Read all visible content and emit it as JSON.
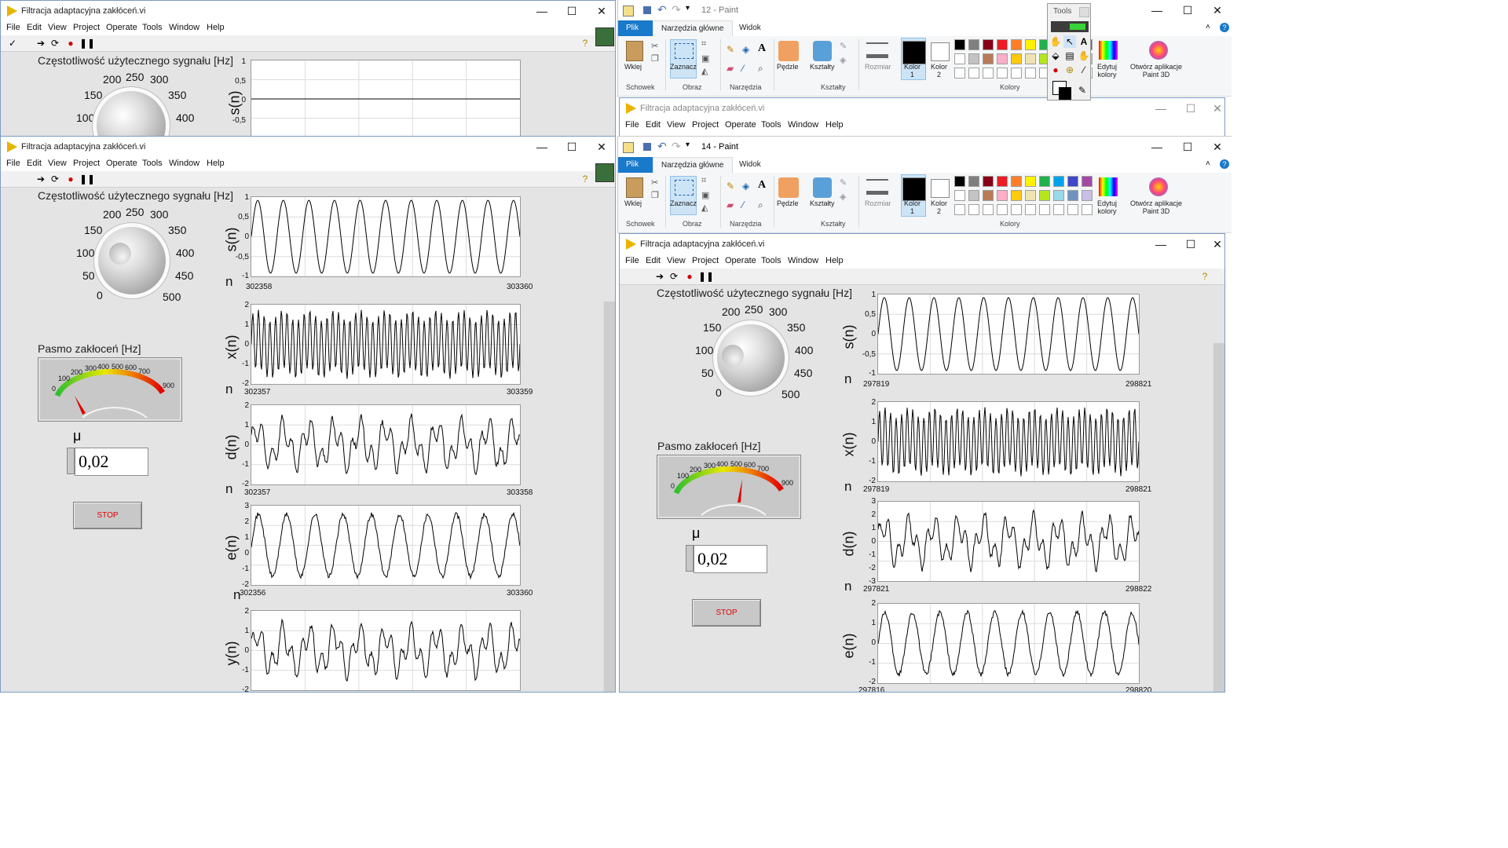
{
  "lv_menu": [
    "File",
    "Edit",
    "View",
    "Project",
    "Operate",
    "Tools",
    "Window",
    "Help"
  ],
  "lv_title": "Filtracja adaptacyjna zakłóceń.vi",
  "window_controls": {
    "minimize": "—",
    "maximize": "☐",
    "close": "✕"
  },
  "knob": {
    "label": "Częstotliwość użytecznego sygnału [Hz]",
    "scale": [
      "0",
      "50",
      "100",
      "150",
      "200",
      "250",
      "300",
      "350",
      "400",
      "450",
      "500"
    ]
  },
  "gauge": {
    "label": "Pasmo zakłoceń [Hz]",
    "scale": [
      "0",
      "100",
      "200",
      "300",
      "400",
      "500",
      "600",
      "700",
      "900"
    ]
  },
  "mu": {
    "symbol": "μ",
    "value": "0,02"
  },
  "stop_label": "STOP",
  "x_axis_letter": "n",
  "win1": {
    "graphs": [
      {
        "ylabel": "s(n)",
        "yticks": [
          "1",
          "0,5",
          "0",
          "-0,5"
        ]
      }
    ]
  },
  "win2": {
    "graphs": [
      {
        "ylabel": "s(n)",
        "yticks": [
          "1",
          "0,5",
          "0",
          "-0,5",
          "-1"
        ],
        "xmin": "302358",
        "xmax": "303360"
      },
      {
        "ylabel": "x(n)",
        "yticks": [
          "2",
          "1",
          "0",
          "-1",
          "-2"
        ],
        "xmin": "302357",
        "xmax": "303359"
      },
      {
        "ylabel": "d(n)",
        "yticks": [
          "2",
          "1",
          "0",
          "-1",
          "-2"
        ],
        "xmin": "302357",
        "xmax": "303358"
      },
      {
        "ylabel": "e(n)",
        "yticks": [
          "3",
          "2",
          "1",
          "0",
          "-1",
          "-2"
        ],
        "xmin": "302356",
        "xmax": "303360"
      },
      {
        "ylabel": "y(n)",
        "yticks": [
          "2",
          "1",
          "0",
          "-1",
          "-2"
        ]
      }
    ]
  },
  "win4": {
    "graphs": [
      {
        "ylabel": "s(n)",
        "yticks": [
          "1",
          "0,5",
          "0",
          "-0,5",
          "-1"
        ],
        "xmin": "297819",
        "xmax": "298821"
      },
      {
        "ylabel": "x(n)",
        "yticks": [
          "2",
          "1",
          "0",
          "-1",
          "-2"
        ],
        "xmin": "297819",
        "xmax": "298821"
      },
      {
        "ylabel": "d(n)",
        "yticks": [
          "3",
          "2",
          "1",
          "0",
          "-1",
          "-2",
          "-3"
        ],
        "xmin": "297821",
        "xmax": "298822"
      },
      {
        "ylabel": "e(n)",
        "yticks": [
          "2",
          "1",
          "0",
          "-1",
          "-2"
        ],
        "xmin": "297816",
        "xmax": "298820"
      }
    ]
  },
  "paint12": {
    "title": "12 - Paint"
  },
  "paint14": {
    "title": "14 - Paint"
  },
  "paint": {
    "tabs": [
      "Plik",
      "Narzędzia główne",
      "Widok"
    ],
    "groups": [
      "Schowek",
      "Obraz",
      "Narzędzia",
      "Kształty",
      "Kolory"
    ],
    "buttons": {
      "paste": "Wklej",
      "select": "Zaznacz",
      "brushes": "Pędzle",
      "shapes": "Kształty",
      "size": "Rozmiar",
      "color1": "Kolor\n1",
      "color2": "Kolor\n2",
      "edit_colors": "Edytuj\nkolory",
      "paint3d": "Otwórz aplikacje\nPaint 3D"
    },
    "palette_colors": [
      "#000000",
      "#7f7f7f",
      "#880015",
      "#ed1c24",
      "#ff7f27",
      "#fff200",
      "#22b14c",
      "#00a2e8",
      "#3f48cc",
      "#a349a4",
      "#ffffff",
      "#c3c3c3",
      "#b97a57",
      "#ffaec9",
      "#ffc90e",
      "#efe4b0",
      "#b5e61d",
      "#99d9ea",
      "#7092be",
      "#c8bfe7"
    ]
  },
  "tools_palette": {
    "title": "Tools"
  }
}
